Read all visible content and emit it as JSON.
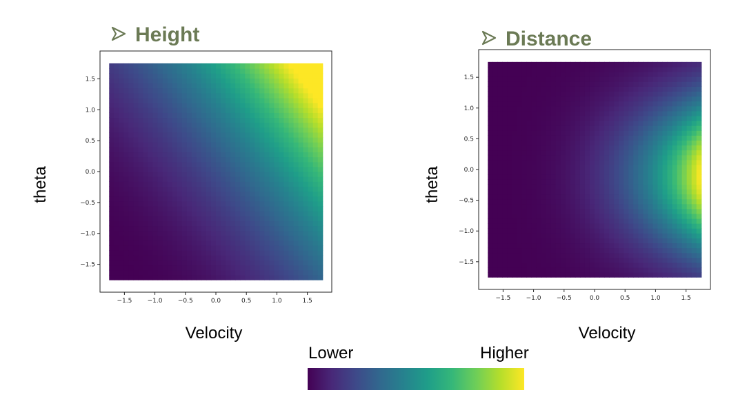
{
  "chart_data": [
    {
      "type": "heatmap",
      "title": "Height",
      "xlabel": "Velocity",
      "ylabel": "theta",
      "xlim": [
        -1.9,
        1.9
      ],
      "ylim": [
        -1.95,
        1.95
      ],
      "data_extent": {
        "x": [
          -1.75,
          1.75
        ],
        "y": [
          -1.75,
          1.75
        ]
      },
      "xticks": [
        -1.5,
        -1.0,
        -0.5,
        0.0,
        0.5,
        1.0,
        1.5
      ],
      "yticks": [
        1.5,
        1.0,
        0.5,
        0.0,
        -0.5,
        -1.0,
        -1.5
      ],
      "xtick_labels": [
        "−1.5",
        "−1.0",
        "−0.5",
        "0.0",
        "0.5",
        "1.0",
        "1.5"
      ],
      "ytick_labels": [
        "1.5",
        "1.0",
        "0.5",
        "0.0",
        "−0.5",
        "−1.0",
        "−1.5"
      ],
      "colormap": "viridis",
      "description": "value increases toward high velocity and high theta (top-right)"
    },
    {
      "type": "heatmap",
      "title": "Distance",
      "xlabel": "Velocity",
      "ylabel": "theta",
      "xlim": [
        -1.9,
        1.9
      ],
      "ylim": [
        -1.95,
        1.95
      ],
      "data_extent": {
        "x": [
          -1.75,
          1.75
        ],
        "y": [
          -1.75,
          1.75
        ]
      },
      "xticks": [
        -1.5,
        -1.0,
        -0.5,
        0.0,
        0.5,
        1.0,
        1.5
      ],
      "yticks": [
        1.5,
        1.0,
        0.5,
        0.0,
        -0.5,
        -1.0,
        -1.5
      ],
      "xtick_labels": [
        "−1.5",
        "−1.0",
        "−0.5",
        "0.0",
        "0.5",
        "1.0",
        "1.5"
      ],
      "ytick_labels": [
        "1.5",
        "1.0",
        "0.5",
        "0.0",
        "−0.5",
        "−1.0",
        "−1.5"
      ],
      "colormap": "viridis",
      "description": "value peaks at high velocity near theta around -0.1 (right-center)"
    }
  ],
  "colorbar": {
    "low_label": "Lower",
    "high_label": "Higher",
    "colors": [
      "#440154",
      "#482878",
      "#3e4989",
      "#31688e",
      "#26828e",
      "#1f9e89",
      "#35b779",
      "#6ece58",
      "#b5de2b",
      "#fde725"
    ]
  },
  "title_color": "#6b7a55"
}
